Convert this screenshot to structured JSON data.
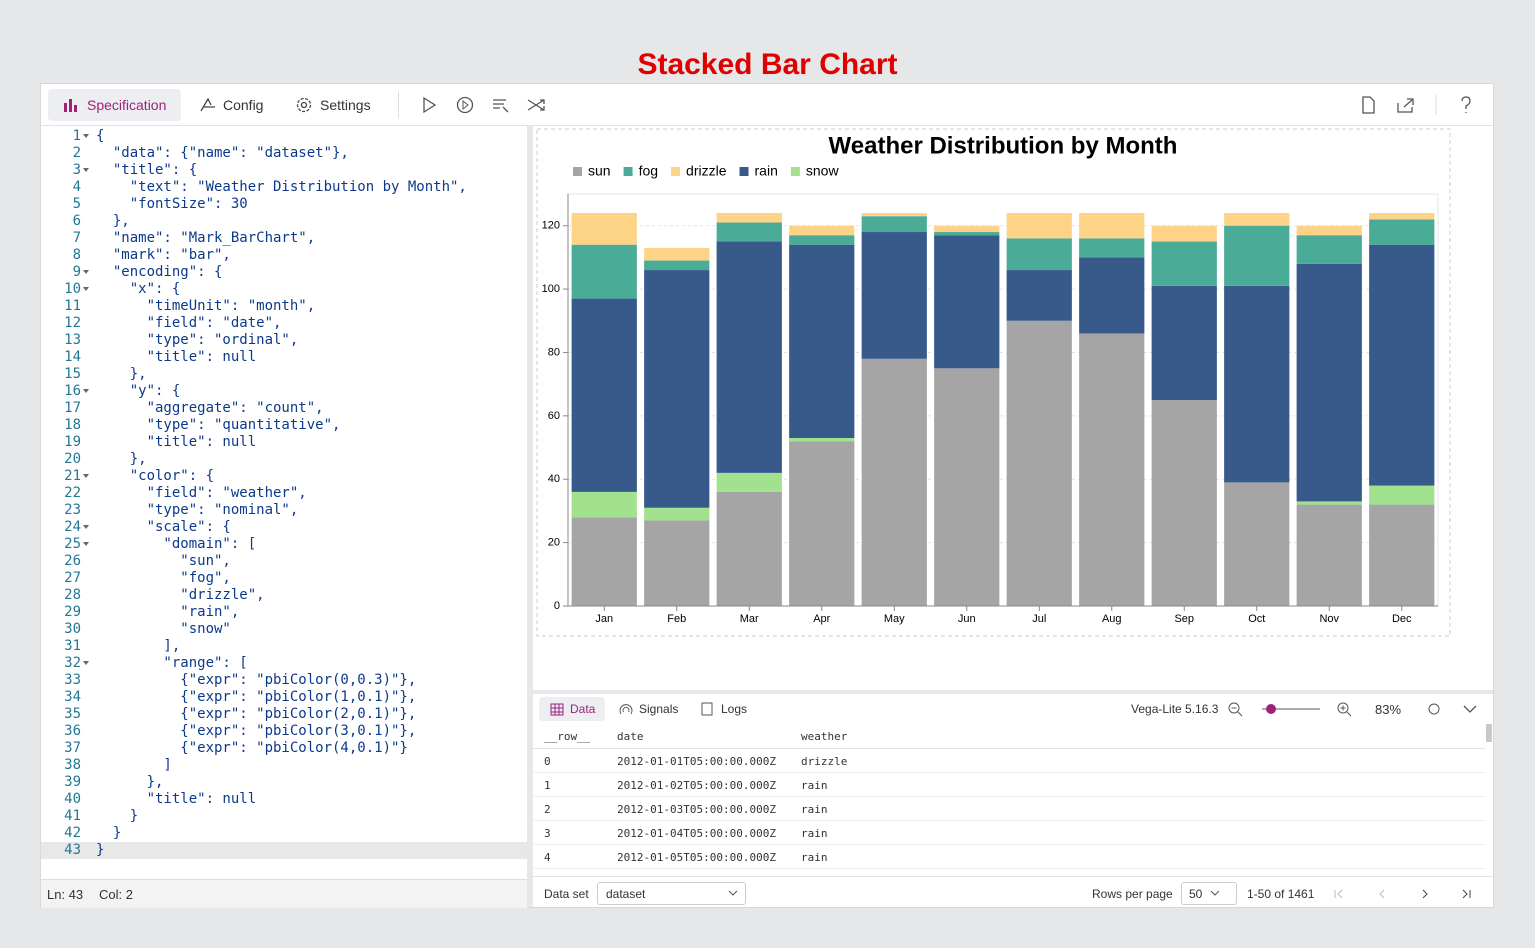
{
  "page_title": "Stacked Bar Chart",
  "toolbar": {
    "tabs": [
      "Specification",
      "Config",
      "Settings"
    ]
  },
  "editor": {
    "lines": [
      {
        "n": 1,
        "text": "{"
      },
      {
        "n": 2,
        "text": "  \"data\": {\"name\": \"dataset\"},"
      },
      {
        "n": 3,
        "text": "  \"title\": {"
      },
      {
        "n": 4,
        "text": "    \"text\": \"Weather Distribution by Month\","
      },
      {
        "n": 5,
        "text": "    \"fontSize\": 30"
      },
      {
        "n": 6,
        "text": "  },"
      },
      {
        "n": 7,
        "text": "  \"name\": \"Mark_BarChart\","
      },
      {
        "n": 8,
        "text": "  \"mark\": \"bar\","
      },
      {
        "n": 9,
        "text": "  \"encoding\": {"
      },
      {
        "n": 10,
        "text": "    \"x\": {"
      },
      {
        "n": 11,
        "text": "      \"timeUnit\": \"month\","
      },
      {
        "n": 12,
        "text": "      \"field\": \"date\","
      },
      {
        "n": 13,
        "text": "      \"type\": \"ordinal\","
      },
      {
        "n": 14,
        "text": "      \"title\": null"
      },
      {
        "n": 15,
        "text": "    },"
      },
      {
        "n": 16,
        "text": "    \"y\": {"
      },
      {
        "n": 17,
        "text": "      \"aggregate\": \"count\","
      },
      {
        "n": 18,
        "text": "      \"type\": \"quantitative\","
      },
      {
        "n": 19,
        "text": "      \"title\": null"
      },
      {
        "n": 20,
        "text": "    },"
      },
      {
        "n": 21,
        "text": "    \"color\": {"
      },
      {
        "n": 22,
        "text": "      \"field\": \"weather\","
      },
      {
        "n": 23,
        "text": "      \"type\": \"nominal\","
      },
      {
        "n": 24,
        "text": "      \"scale\": {"
      },
      {
        "n": 25,
        "text": "        \"domain\": ["
      },
      {
        "n": 26,
        "text": "          \"sun\","
      },
      {
        "n": 27,
        "text": "          \"fog\","
      },
      {
        "n": 28,
        "text": "          \"drizzle\","
      },
      {
        "n": 29,
        "text": "          \"rain\","
      },
      {
        "n": 30,
        "text": "          \"snow\""
      },
      {
        "n": 31,
        "text": "        ],"
      },
      {
        "n": 32,
        "text": "        \"range\": ["
      },
      {
        "n": 33,
        "text": "          {\"expr\": \"pbiColor(0,0.3)\"},"
      },
      {
        "n": 34,
        "text": "          {\"expr\": \"pbiColor(1,0.1)\"},"
      },
      {
        "n": 35,
        "text": "          {\"expr\": \"pbiColor(2,0.1)\"},"
      },
      {
        "n": 36,
        "text": "          {\"expr\": \"pbiColor(3,0.1)\"},"
      },
      {
        "n": 37,
        "text": "          {\"expr\": \"pbiColor(4,0.1)\"}"
      },
      {
        "n": 38,
        "text": "        ]"
      },
      {
        "n": 39,
        "text": "      },"
      },
      {
        "n": 40,
        "text": "      \"title\": null"
      },
      {
        "n": 41,
        "text": "    }"
      },
      {
        "n": 42,
        "text": "  }"
      },
      {
        "n": 43,
        "text": "}"
      }
    ],
    "status": {
      "line": "Ln: 43",
      "col": "Col: 2"
    }
  },
  "chart_data": {
    "type": "stacked_bar",
    "title": "Weather Distribution by Month",
    "categories": [
      "Jan",
      "Feb",
      "Mar",
      "Apr",
      "May",
      "Jun",
      "Jul",
      "Aug",
      "Sep",
      "Oct",
      "Nov",
      "Dec"
    ],
    "series": [
      {
        "name": "sun",
        "color": "#a5a5a5",
        "values": [
          28,
          27,
          36,
          52,
          78,
          75,
          90,
          86,
          65,
          39,
          32,
          32
        ]
      },
      {
        "name": "fog",
        "color": "#4aac97",
        "values": [
          17,
          3,
          6,
          3,
          5,
          1,
          10,
          6,
          14,
          19,
          9,
          8
        ]
      },
      {
        "name": "drizzle",
        "color": "#fdd487",
        "values": [
          10,
          4,
          3,
          3,
          1,
          2,
          8,
          8,
          5,
          4,
          3,
          2
        ]
      },
      {
        "name": "rain",
        "color": "#375a8a",
        "values": [
          61,
          75,
          73,
          61,
          40,
          42,
          16,
          24,
          36,
          62,
          75,
          76
        ]
      },
      {
        "name": "snow",
        "color": "#a2e28f",
        "values": [
          8,
          4,
          6,
          1,
          0,
          0,
          0,
          0,
          0,
          0,
          1,
          6
        ]
      }
    ],
    "stack_order": [
      0,
      4,
      3,
      1,
      2
    ],
    "ylim": [
      0,
      130
    ],
    "yticks": [
      0,
      20,
      40,
      60,
      80,
      100,
      120
    ],
    "grid": true,
    "legend": "top-left"
  },
  "data_panel": {
    "tabs": [
      "Data",
      "Signals",
      "Logs"
    ],
    "version": "Vega-Lite 5.16.3",
    "zoom": "83%",
    "table": {
      "columns": [
        "__row__",
        "date",
        "weather"
      ],
      "rows": [
        [
          0,
          "2012-01-01T05:00:00.000Z",
          "drizzle"
        ],
        [
          1,
          "2012-01-02T05:00:00.000Z",
          "rain"
        ],
        [
          2,
          "2012-01-03T05:00:00.000Z",
          "rain"
        ],
        [
          3,
          "2012-01-04T05:00:00.000Z",
          "rain"
        ],
        [
          4,
          "2012-01-05T05:00:00.000Z",
          "rain"
        ]
      ]
    },
    "footer": {
      "dataset_label": "Data set",
      "dataset": "dataset",
      "rows_per_page_label": "Rows per page",
      "rows_per_page": "50",
      "range": "1-50 of 1461"
    }
  }
}
